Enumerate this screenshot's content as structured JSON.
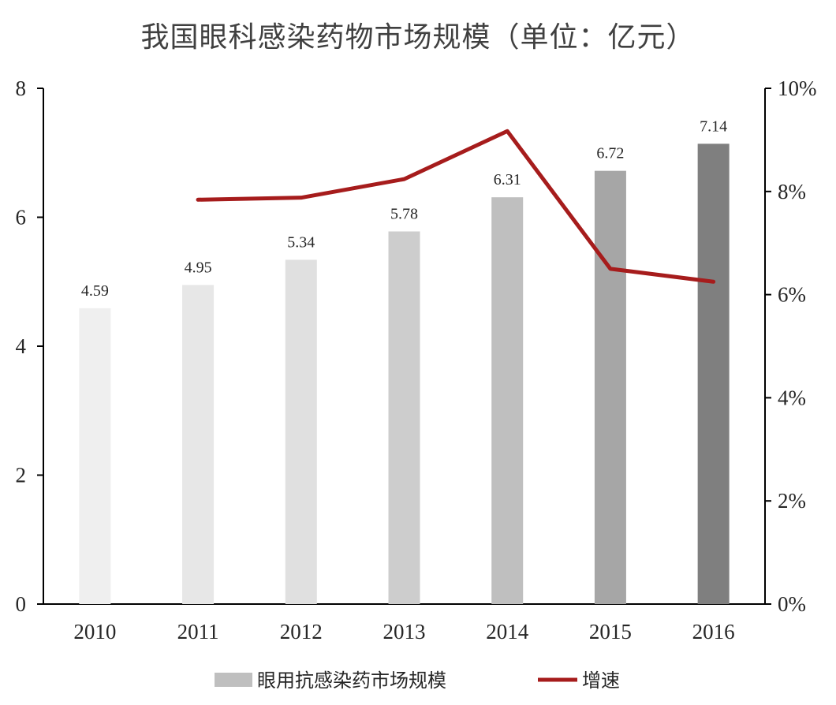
{
  "chart_data": {
    "type": "bar",
    "title": "我国眼科感染药物市场规模（单位：亿元）",
    "categories": [
      "2010",
      "2011",
      "2012",
      "2013",
      "2014",
      "2015",
      "2016"
    ],
    "y_ticks": [
      "0",
      "2",
      "4",
      "6",
      "8"
    ],
    "y2_ticks": [
      "0%",
      "2%",
      "4%",
      "6%",
      "8%",
      "10%"
    ],
    "ylim": [
      0,
      8
    ],
    "y2lim": [
      0,
      10
    ],
    "series": [
      {
        "name": "眼用抗感染药市场规模",
        "type": "bar",
        "axis": "left",
        "values": [
          4.59,
          4.95,
          5.34,
          5.78,
          6.31,
          6.72,
          7.14
        ],
        "labels": [
          "4.59",
          "4.95",
          "5.34",
          "5.78",
          "6.31",
          "6.72",
          "7.14"
        ],
        "colors": [
          "#efefef",
          "#e7e7e7",
          "#e0e0e0",
          "#cdcdcd",
          "#bfbfbf",
          "#a6a6a6",
          "#7f7f7f"
        ]
      },
      {
        "name": "增速",
        "type": "line",
        "axis": "right",
        "color": "#a61c1c",
        "values": [
          null,
          7.84,
          7.88,
          8.24,
          9.17,
          6.5,
          6.25
        ]
      }
    ],
    "legend_position": "bottom",
    "grid": false
  }
}
